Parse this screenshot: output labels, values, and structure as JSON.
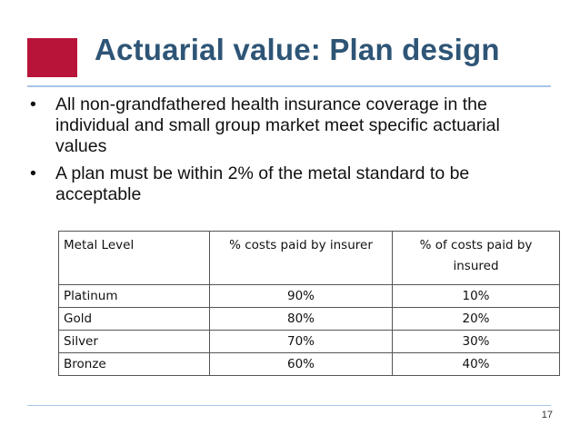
{
  "slide": {
    "title": "Actuarial value:  Plan design",
    "bullets": [
      "All non-grandfathered health insurance coverage in the individual and small group market meet specific actuarial values",
      "A plan must be within 2% of the metal standard to be acceptable"
    ],
    "bullet_symbol": "•",
    "table": {
      "headers": [
        "Metal Level",
        "% costs paid by insurer",
        "% of costs paid by insured"
      ],
      "rows": [
        [
          "Platinum",
          "90%",
          "10%"
        ],
        [
          "Gold",
          "80%",
          "20%"
        ],
        [
          "Silver",
          "70%",
          "30%"
        ],
        [
          "Bronze",
          "60%",
          "40%"
        ]
      ]
    },
    "page_number": "17"
  },
  "colors": {
    "accent": "#b8143a",
    "title": "#2e5576",
    "rule": "#a8c6e8"
  }
}
